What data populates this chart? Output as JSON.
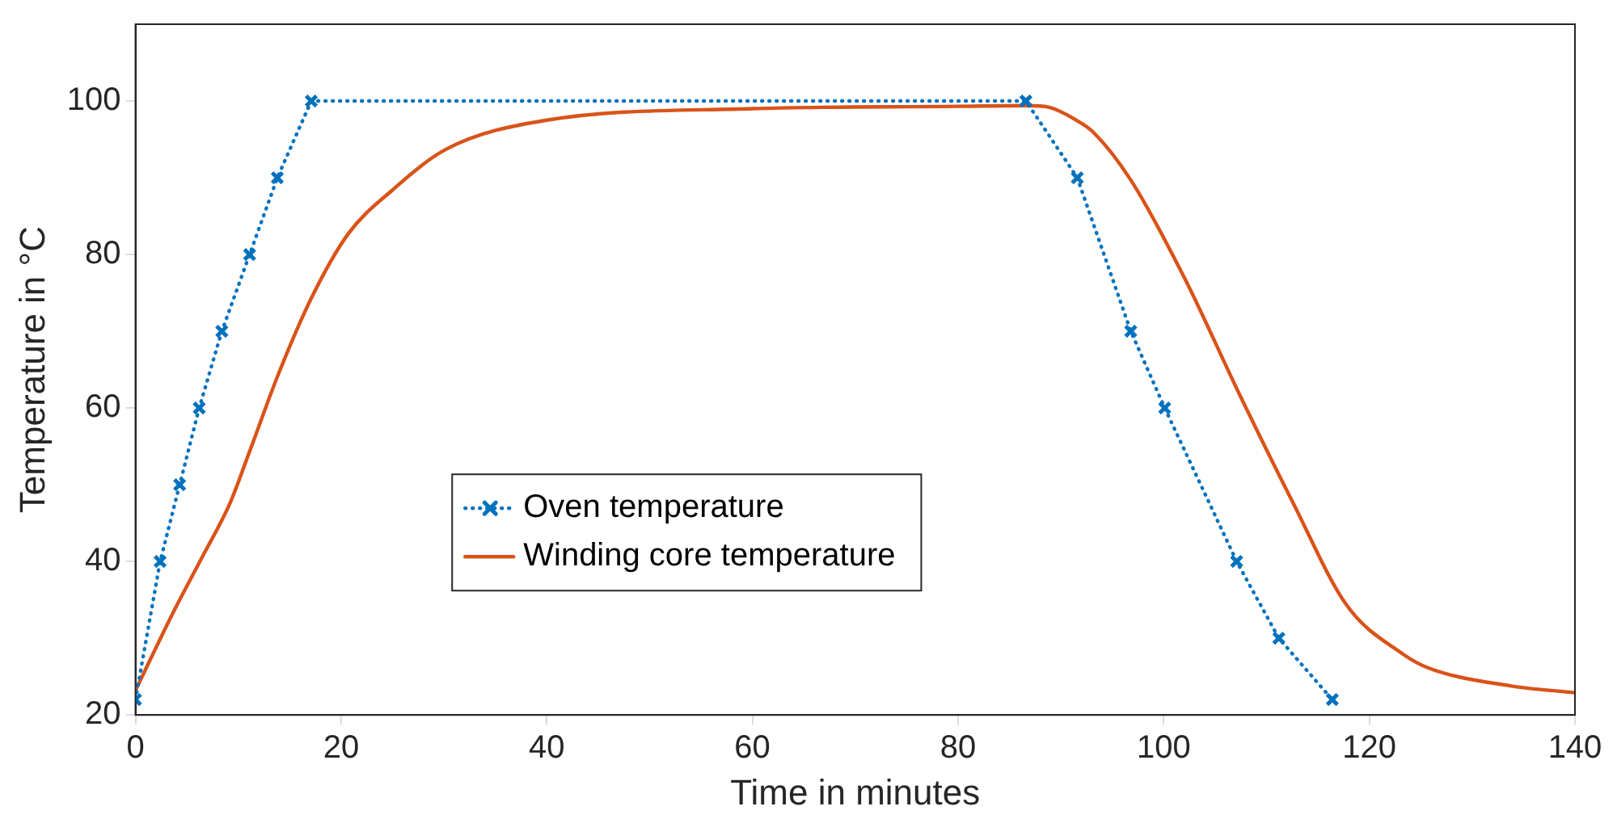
{
  "chart_data": {
    "type": "line",
    "xlabel": "Time in minutes",
    "ylabel": "Temperature in °C",
    "xlim": [
      0,
      140
    ],
    "xticks": [
      0,
      20,
      40,
      60,
      80,
      100,
      120,
      140
    ],
    "ylim": [
      20,
      110
    ],
    "yticks": [
      20,
      40,
      60,
      80,
      100
    ],
    "grid": false,
    "legend": "bottom left",
    "series": [
      {
        "name": "Oven temperature",
        "color": "#0072bd",
        "marker": "cross",
        "line_style": "dotted",
        "x": [
          0,
          2.4,
          4.3,
          6.2,
          8.4,
          11.1,
          13.8,
          17.1,
          86.6,
          91.6,
          96.8,
          100.1,
          107.1,
          111.2,
          116.4
        ],
        "values": [
          22,
          40,
          50,
          60,
          70,
          80,
          90,
          100,
          100,
          90,
          70,
          60,
          40,
          30,
          22
        ]
      },
      {
        "name": "Winding core temperature",
        "color": "#d95319",
        "marker": "none",
        "line_style": "solid",
        "x": [
          0,
          3.8,
          6.5,
          9.2,
          11.2,
          13.9,
          17.1,
          20.7,
          25,
          30.2,
          40,
          60,
          80,
          86.6,
          88.8,
          91.5,
          93.1,
          96.8,
          102,
          107.4,
          112.6,
          117.8,
          123.2,
          125.8,
          133.7,
          140
        ],
        "values": [
          23.2,
          33.7,
          40.6,
          47.6,
          54.7,
          64.4,
          74.3,
          82.7,
          88.4,
          93.7,
          97.5,
          99,
          99.3,
          99.4,
          99.2,
          97.5,
          96,
          89.7,
          77,
          61.7,
          47.6,
          34.3,
          28,
          26.1,
          23.8,
          22.9
        ]
      }
    ]
  }
}
